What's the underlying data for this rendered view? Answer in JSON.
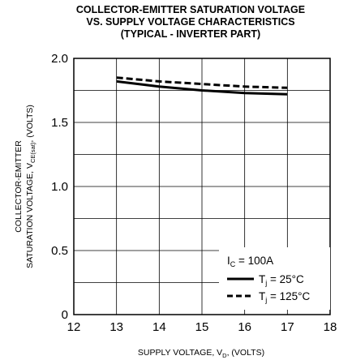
{
  "chart_data": {
    "type": "line",
    "title_lines": [
      "COLLECTOR-EMITTER SATURATION VOLTAGE",
      "VS. SUPPLY VOLTAGE CHARACTERISTICS",
      "(TYPICAL - INVERTER PART)"
    ],
    "xlabel": {
      "main": "SUPPLY VOLTAGE, V",
      "sub": "D",
      "tail": ", (VOLTS)"
    },
    "ylabel": {
      "line1": "COLLECTOR-EMITTER",
      "line2_main": "SATURATION VOLTAGE, V",
      "line2_sub": "CE(sat)",
      "line2_tail": ", (VOLTS)"
    },
    "xlim": [
      12,
      18
    ],
    "ylim": [
      0,
      2.0
    ],
    "x_ticks": [
      12,
      13,
      14,
      15,
      16,
      17,
      18
    ],
    "x_tick_labels": [
      "12",
      "13",
      "14",
      "15",
      "16",
      "17",
      "18"
    ],
    "y_ticks": [
      0,
      0.5,
      1.0,
      1.5,
      2.0
    ],
    "y_tick_labels": [
      "0",
      "0.5",
      "1.0",
      "1.5",
      "2.0"
    ],
    "grid": true,
    "x_minor_grid_step": 1,
    "y_minor_grid_step": 0.25,
    "legend_placement": "bottom-right",
    "legend_header": {
      "main": "I",
      "sub": "C",
      "tail": " = 100A"
    },
    "series": [
      {
        "legend": {
          "main": "T",
          "sub": "j",
          "tail": " = 25°C"
        },
        "style": "solid",
        "color": "#000000",
        "x": [
          13,
          14,
          15,
          16,
          17
        ],
        "y": [
          1.82,
          1.78,
          1.75,
          1.73,
          1.72
        ]
      },
      {
        "legend": {
          "main": "T",
          "sub": "j",
          "tail": " = 125°C"
        },
        "style": "dashed",
        "color": "#000000",
        "x": [
          13,
          14,
          15,
          16,
          17
        ],
        "y": [
          1.85,
          1.82,
          1.8,
          1.78,
          1.77
        ]
      }
    ]
  }
}
